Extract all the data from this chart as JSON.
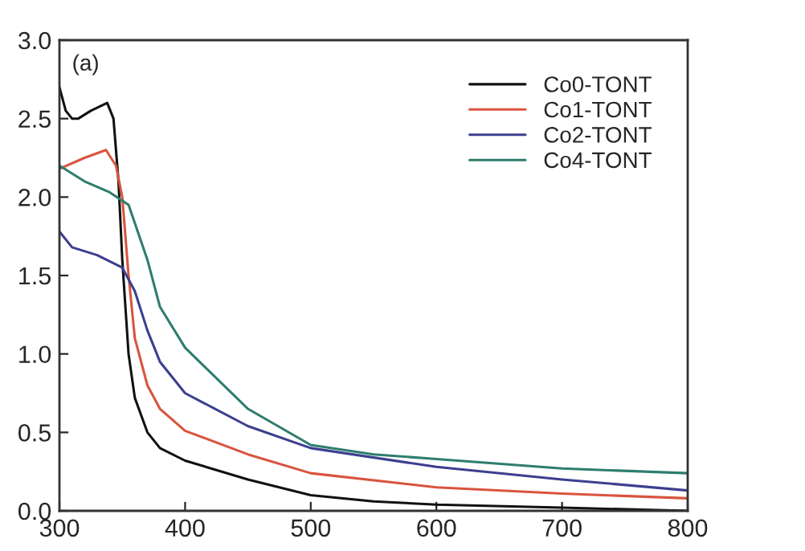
{
  "chart_data": {
    "type": "line",
    "annotations": [
      "(a)"
    ],
    "xlim": [
      300,
      800
    ],
    "xticks": [
      300,
      400,
      500,
      600,
      700,
      800
    ],
    "ylim": [
      0,
      3.0
    ],
    "yticks": [
      {
        "value": 0,
        "label": "0.0"
      },
      0.5,
      {
        "value": 1,
        "label": "1.0"
      },
      1.5,
      {
        "value": 2,
        "label": "2.0"
      },
      2.5,
      {
        "value": 3,
        "label": "3.0"
      }
    ],
    "legend": "top right",
    "grid": false,
    "series": [
      {
        "name": "Co0-TONT",
        "color": "#111111",
        "x": [
          300,
          305,
          310,
          315,
          325,
          338,
          343,
          347,
          350,
          355,
          360,
          370,
          380,
          400,
          450,
          500,
          550,
          600,
          700,
          800
        ],
        "values": [
          2.7,
          2.55,
          2.5,
          2.5,
          2.55,
          2.6,
          2.5,
          2.1,
          1.6,
          1.0,
          0.72,
          0.5,
          0.4,
          0.32,
          0.2,
          0.1,
          0.06,
          0.04,
          0.02,
          0.0
        ]
      },
      {
        "name": "Co1-TONT",
        "color": "#d9543f",
        "x": [
          300,
          320,
          337,
          345,
          350,
          355,
          360,
          370,
          380,
          400,
          450,
          500,
          600,
          700,
          800
        ],
        "values": [
          2.18,
          2.25,
          2.3,
          2.2,
          2.0,
          1.5,
          1.1,
          0.8,
          0.65,
          0.51,
          0.36,
          0.24,
          0.15,
          0.11,
          0.08
        ]
      },
      {
        "name": "Co2-TONT",
        "color": "#3c3f8f",
        "x": [
          300,
          310,
          330,
          350,
          360,
          370,
          380,
          400,
          450,
          500,
          600,
          700,
          800
        ],
        "values": [
          1.78,
          1.68,
          1.63,
          1.55,
          1.4,
          1.15,
          0.95,
          0.75,
          0.54,
          0.4,
          0.28,
          0.2,
          0.13
        ]
      },
      {
        "name": "Co4-TONT",
        "color": "#2e7d6e",
        "x": [
          300,
          320,
          340,
          355,
          370,
          380,
          400,
          450,
          500,
          550,
          600,
          700,
          800
        ],
        "values": [
          2.2,
          2.1,
          2.03,
          1.95,
          1.6,
          1.3,
          1.04,
          0.65,
          0.42,
          0.36,
          0.33,
          0.27,
          0.24
        ]
      }
    ]
  }
}
